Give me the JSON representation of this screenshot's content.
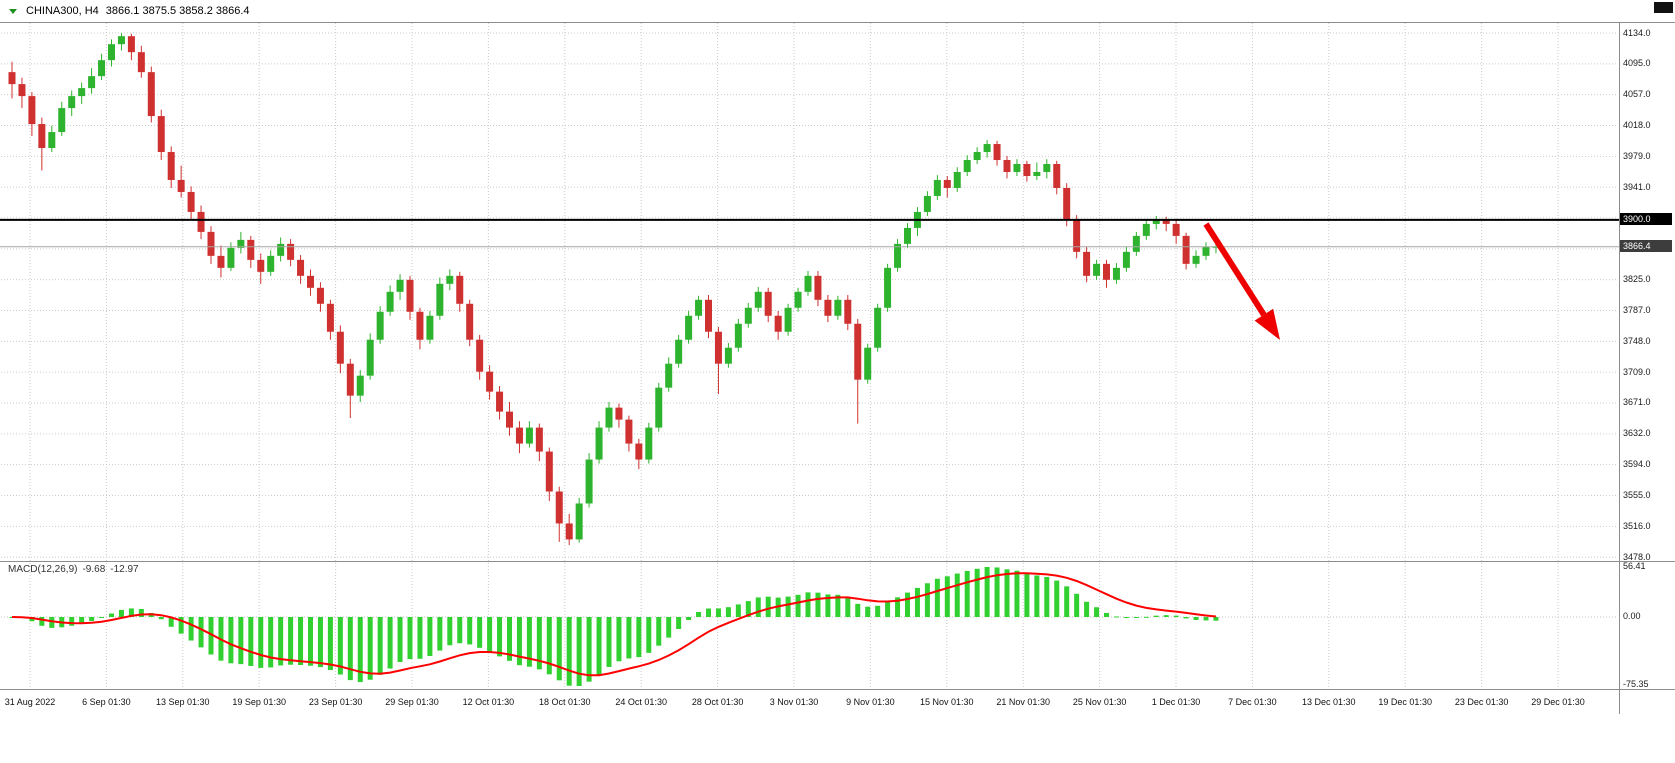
{
  "header": {
    "symbol": "CHINA300, H4",
    "ohlc": "3866.1 3875.5 3858.2 3866.4"
  },
  "chart_data": {
    "type": "candlestick",
    "title": "CHINA300 H4",
    "ylim": [
      3478.0,
      4134.0
    ],
    "grid": "dotted",
    "colors": {
      "up": "#2eb32e",
      "down": "#cf3030"
    },
    "price_axis": {
      "rows": [
        [
          4134.0,
          "4134.0"
        ],
        [
          4095.4,
          "4095.0"
        ],
        [
          4056.8,
          "4057.0"
        ],
        [
          4018.2,
          "4018.0"
        ],
        [
          3979.6,
          "3979.0"
        ],
        [
          3941.0,
          "3941.0"
        ],
        [
          3902.4,
          null
        ],
        [
          3863.8,
          null
        ],
        [
          3825.2,
          "3825.0"
        ],
        [
          3786.6,
          "3787.0"
        ],
        [
          3748.0,
          "3748.0"
        ],
        [
          3709.4,
          "3709.0"
        ],
        [
          3670.8,
          "3671.0"
        ],
        [
          3632.2,
          "3632.0"
        ],
        [
          3593.6,
          "3594.0"
        ],
        [
          3555.0,
          "3555.0"
        ],
        [
          3516.4,
          "3516.0"
        ],
        [
          3477.8,
          "3478.0"
        ]
      ]
    },
    "time_axis": {
      "labels": [
        "31 Aug 2022",
        "6 Sep 01:30",
        "13 Sep 01:30",
        "19 Sep 01:30",
        "23 Sep 01:30",
        "29 Sep 01:30",
        "12 Oct 01:30",
        "18 Oct 01:30",
        "24 Oct 01:30",
        "28 Oct 01:30",
        "3 Nov 01:30",
        "9 Nov 01:30",
        "15 Nov 01:30",
        "21 Nov 01:30",
        "25 Nov 01:30",
        "1 Dec 01:30",
        "7 Dec 01:30",
        "13 Dec 01:30",
        "19 Dec 01:30",
        "23 Dec 01:30",
        "29 Dec 01:30"
      ]
    },
    "hline": {
      "value": 3900.0,
      "label": "3900.0",
      "color": "#000000"
    },
    "current": {
      "value": 3866.4,
      "label": "3866.4",
      "color": "#a6a6a6"
    },
    "arrow": {
      "color": "#ee0000",
      "from": [
        1206,
        224
      ],
      "to": [
        1280,
        340
      ]
    },
    "macd": {
      "label": "MACD(12,26,9)",
      "macd_value": "-9.68",
      "signal_value": "-12.97",
      "axis_labels": [
        "56.41",
        "0.00",
        "-75.35"
      ],
      "histogram_color": "#30d030",
      "signal_color": "#ff0000"
    },
    "candles": [
      [
        4085,
        4098,
        4052,
        4070
      ],
      [
        4070,
        4078,
        4040,
        4055
      ],
      [
        4055,
        4060,
        4005,
        4020
      ],
      [
        4020,
        4028,
        3962,
        3990
      ],
      [
        3990,
        4018,
        3985,
        4010
      ],
      [
        4010,
        4048,
        4005,
        4040
      ],
      [
        4040,
        4062,
        4030,
        4055
      ],
      [
        4055,
        4072,
        4045,
        4065
      ],
      [
        4065,
        4090,
        4058,
        4080
      ],
      [
        4080,
        4108,
        4075,
        4100
      ],
      [
        4100,
        4126,
        4092,
        4120
      ],
      [
        4120,
        4134,
        4112,
        4130
      ],
      [
        4130,
        4133,
        4100,
        4110
      ],
      [
        4110,
        4118,
        4078,
        4085
      ],
      [
        4085,
        4092,
        4022,
        4030
      ],
      [
        4030,
        4038,
        3975,
        3985
      ],
      [
        3985,
        3992,
        3940,
        3950
      ],
      [
        3950,
        3968,
        3928,
        3935
      ],
      [
        3935,
        3942,
        3900,
        3910
      ],
      [
        3910,
        3918,
        3876,
        3885
      ],
      [
        3885,
        3892,
        3845,
        3855
      ],
      [
        3855,
        3868,
        3828,
        3840
      ],
      [
        3840,
        3872,
        3836,
        3865
      ],
      [
        3865,
        3885,
        3858,
        3875
      ],
      [
        3875,
        3880,
        3840,
        3850
      ],
      [
        3850,
        3858,
        3820,
        3835
      ],
      [
        3835,
        3862,
        3830,
        3855
      ],
      [
        3855,
        3878,
        3848,
        3870
      ],
      [
        3870,
        3876,
        3842,
        3850
      ],
      [
        3850,
        3856,
        3820,
        3830
      ],
      [
        3830,
        3838,
        3805,
        3815
      ],
      [
        3815,
        3822,
        3785,
        3795
      ],
      [
        3795,
        3800,
        3750,
        3760
      ],
      [
        3760,
        3768,
        3708,
        3720
      ],
      [
        3720,
        3726,
        3652,
        3680
      ],
      [
        3680,
        3712,
        3672,
        3705
      ],
      [
        3705,
        3758,
        3700,
        3750
      ],
      [
        3750,
        3792,
        3745,
        3785
      ],
      [
        3785,
        3818,
        3780,
        3810
      ],
      [
        3810,
        3832,
        3800,
        3825
      ],
      [
        3825,
        3830,
        3775,
        3785
      ],
      [
        3785,
        3790,
        3738,
        3750
      ],
      [
        3750,
        3786,
        3745,
        3780
      ],
      [
        3780,
        3828,
        3775,
        3820
      ],
      [
        3820,
        3838,
        3812,
        3830
      ],
      [
        3830,
        3835,
        3785,
        3795
      ],
      [
        3795,
        3800,
        3742,
        3750
      ],
      [
        3750,
        3756,
        3700,
        3710
      ],
      [
        3710,
        3718,
        3675,
        3685
      ],
      [
        3685,
        3692,
        3650,
        3660
      ],
      [
        3660,
        3672,
        3630,
        3640
      ],
      [
        3640,
        3648,
        3608,
        3620
      ],
      [
        3620,
        3648,
        3615,
        3640
      ],
      [
        3640,
        3645,
        3598,
        3610
      ],
      [
        3610,
        3615,
        3548,
        3560
      ],
      [
        3560,
        3566,
        3497,
        3520
      ],
      [
        3520,
        3532,
        3493,
        3500
      ],
      [
        3500,
        3552,
        3496,
        3545
      ],
      [
        3545,
        3608,
        3540,
        3600
      ],
      [
        3600,
        3648,
        3595,
        3640
      ],
      [
        3640,
        3672,
        3635,
        3665
      ],
      [
        3665,
        3670,
        3640,
        3650
      ],
      [
        3650,
        3655,
        3610,
        3620
      ],
      [
        3620,
        3626,
        3588,
        3600
      ],
      [
        3600,
        3646,
        3595,
        3640
      ],
      [
        3640,
        3696,
        3635,
        3690
      ],
      [
        3690,
        3728,
        3685,
        3720
      ],
      [
        3720,
        3756,
        3715,
        3750
      ],
      [
        3750,
        3786,
        3745,
        3780
      ],
      [
        3780,
        3805,
        3775,
        3800
      ],
      [
        3800,
        3806,
        3752,
        3760
      ],
      [
        3760,
        3766,
        3682,
        3720
      ],
      [
        3720,
        3746,
        3715,
        3740
      ],
      [
        3740,
        3776,
        3735,
        3770
      ],
      [
        3770,
        3796,
        3765,
        3790
      ],
      [
        3790,
        3816,
        3785,
        3810
      ],
      [
        3810,
        3815,
        3772,
        3780
      ],
      [
        3780,
        3786,
        3750,
        3760
      ],
      [
        3760,
        3795,
        3755,
        3790
      ],
      [
        3790,
        3815,
        3785,
        3810
      ],
      [
        3810,
        3836,
        3805,
        3830
      ],
      [
        3830,
        3836,
        3792,
        3800
      ],
      [
        3800,
        3806,
        3772,
        3780
      ],
      [
        3780,
        3805,
        3775,
        3800
      ],
      [
        3800,
        3806,
        3762,
        3770
      ],
      [
        3770,
        3776,
        3645,
        3700
      ],
      [
        3700,
        3745,
        3695,
        3740
      ],
      [
        3740,
        3795,
        3735,
        3790
      ],
      [
        3790,
        3845,
        3785,
        3840
      ],
      [
        3840,
        3876,
        3835,
        3870
      ],
      [
        3870,
        3896,
        3865,
        3890
      ],
      [
        3890,
        3916,
        3880,
        3910
      ],
      [
        3910,
        3936,
        3905,
        3930
      ],
      [
        3930,
        3956,
        3925,
        3950
      ],
      [
        3950,
        3955,
        3928,
        3940
      ],
      [
        3940,
        3966,
        3935,
        3960
      ],
      [
        3960,
        3981,
        3955,
        3975
      ],
      [
        3975,
        3991,
        3970,
        3985
      ],
      [
        3985,
        4000,
        3978,
        3995
      ],
      [
        3995,
        3999,
        3968,
        3975
      ],
      [
        3975,
        3980,
        3952,
        3960
      ],
      [
        3960,
        3976,
        3955,
        3970
      ],
      [
        3970,
        3974,
        3948,
        3955
      ],
      [
        3955,
        3972,
        3950,
        3960
      ],
      [
        3960,
        3976,
        3952,
        3970
      ],
      [
        3970,
        3974,
        3932,
        3940
      ],
      [
        3940,
        3946,
        3892,
        3900
      ],
      [
        3900,
        3906,
        3852,
        3860
      ],
      [
        3860,
        3866,
        3822,
        3830
      ],
      [
        3830,
        3850,
        3825,
        3845
      ],
      [
        3845,
        3850,
        3815,
        3825
      ],
      [
        3825,
        3846,
        3820,
        3840
      ],
      [
        3840,
        3866,
        3835,
        3860
      ],
      [
        3860,
        3885,
        3855,
        3880
      ],
      [
        3880,
        3900,
        3875,
        3895
      ],
      [
        3895,
        3905,
        3888,
        3900
      ],
      [
        3900,
        3904,
        3886,
        3895
      ],
      [
        3895,
        3900,
        3870,
        3880
      ],
      [
        3880,
        3884,
        3838,
        3845
      ],
      [
        3845,
        3862,
        3840,
        3855
      ],
      [
        3855,
        3872,
        3850,
        3866
      ],
      [
        3866.1,
        3875.5,
        3858.2,
        3866.4
      ]
    ]
  }
}
